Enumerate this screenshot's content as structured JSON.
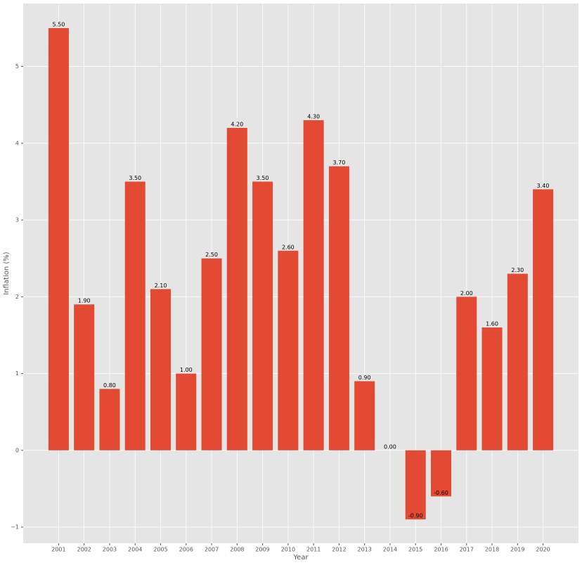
{
  "chart_data": {
    "type": "bar",
    "x_label": "Year",
    "y_label": "Inflation (%)",
    "categories": [
      "2001",
      "2002",
      "2003",
      "2004",
      "2005",
      "2006",
      "2007",
      "2008",
      "2009",
      "2010",
      "2011",
      "2012",
      "2013",
      "2014",
      "2015",
      "2016",
      "2017",
      "2018",
      "2019",
      "2020"
    ],
    "values": [
      5.5,
      1.9,
      0.8,
      3.5,
      2.1,
      1.0,
      2.5,
      4.2,
      3.5,
      2.6,
      4.3,
      3.7,
      0.9,
      0.0,
      -0.9,
      -0.6,
      2.0,
      1.6,
      2.3,
      3.4
    ],
    "value_labels": [
      "5.50",
      "1.90",
      "0.80",
      "3.50",
      "2.10",
      "1.00",
      "2.50",
      "4.20",
      "3.50",
      "2.60",
      "4.30",
      "3.70",
      "0.90",
      "0.00",
      "-0.90",
      "-0.60",
      "2.00",
      "1.60",
      "2.30",
      "3.40"
    ],
    "color": "#e24a33",
    "ylim": [
      -1.21,
      5.82
    ],
    "yticks": [
      {
        "value": -1,
        "label": "−1"
      },
      0,
      1,
      2,
      3,
      4,
      5
    ],
    "grid": true
  }
}
